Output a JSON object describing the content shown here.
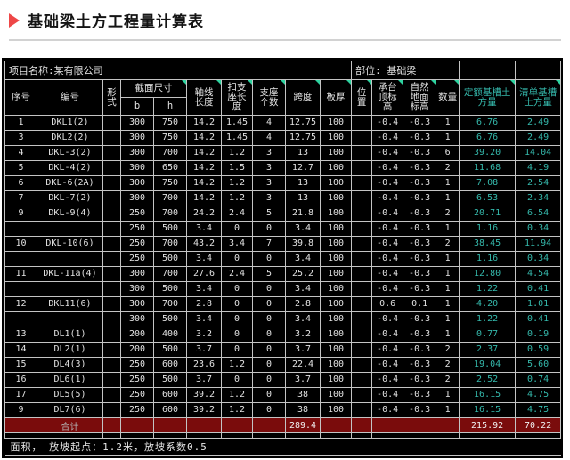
{
  "page": {
    "title": "基础梁土方工程量计算表"
  },
  "colors": {
    "accent_red": "#ee4747",
    "table_bg": "#000000",
    "grid_line": "#c4c4c4",
    "value_cyan": "#35b9ac",
    "total_row_bg": "#7a0c0c",
    "comment_marker_teal": "#2fd3a0"
  },
  "table": {
    "project_label": "项目名称:某有限公司",
    "location_label": "部位: 基础梁",
    "headers": {
      "seq": "序号",
      "code": "编号",
      "form": "形\n式",
      "section": "截面尺寸",
      "b": "b",
      "h": "h",
      "axis": "轴线\n长度",
      "deduct": "扣支\n座长\n度",
      "supports": "支座\n个数",
      "span": "跨度",
      "slab": "板厚",
      "position": "位置",
      "cap": "承台\n顶标\n高",
      "ground": "自然\n地面\n标高",
      "qty": "数量",
      "quota": "定额基槽土\n方量",
      "list": "清单基槽\n土方量"
    },
    "rows": [
      [
        "1",
        "DKL1(2)",
        "",
        "300",
        "750",
        "14.2",
        "1.45",
        "4",
        "12.75",
        "100",
        "",
        "-0.4",
        "-0.3",
        "1",
        "6.76",
        "2.49"
      ],
      [
        "3",
        "DKL2(2)",
        "",
        "300",
        "750",
        "14.2",
        "1.45",
        "4",
        "12.75",
        "100",
        "",
        "-0.4",
        "-0.3",
        "1",
        "6.76",
        "2.49"
      ],
      [
        "4",
        "DKL-3(2)",
        "",
        "300",
        "700",
        "14.2",
        "1.2",
        "3",
        "13",
        "100",
        "",
        "-0.4",
        "-0.3",
        "6",
        "39.20",
        "14.04"
      ],
      [
        "5",
        "DKL-4(2)",
        "",
        "300",
        "650",
        "14.2",
        "1.5",
        "3",
        "12.7",
        "100",
        "",
        "-0.4",
        "-0.3",
        "2",
        "11.68",
        "4.19"
      ],
      [
        "6",
        "DKL-6(2A)",
        "",
        "300",
        "750",
        "14.2",
        "1.2",
        "3",
        "13",
        "100",
        "",
        "-0.4",
        "-0.3",
        "1",
        "7.08",
        "2.54"
      ],
      [
        "7",
        "DKL-7(2)",
        "",
        "300",
        "700",
        "14.2",
        "1.2",
        "3",
        "13",
        "100",
        "",
        "-0.4",
        "-0.3",
        "1",
        "6.53",
        "2.34"
      ],
      [
        "9",
        "DKL-9(4)",
        "",
        "250",
        "700",
        "24.2",
        "2.4",
        "5",
        "21.8",
        "100",
        "",
        "-0.4",
        "-0.3",
        "2",
        "20.71",
        "6.54"
      ],
      [
        "",
        "",
        "",
        "250",
        "500",
        "3.4",
        "0",
        "0",
        "3.4",
        "100",
        "",
        "-0.4",
        "-0.3",
        "1",
        "1.16",
        "0.34"
      ],
      [
        "10",
        "DKL-10(6)",
        "",
        "250",
        "700",
        "43.2",
        "3.4",
        "7",
        "39.8",
        "100",
        "",
        "-0.4",
        "-0.3",
        "2",
        "38.45",
        "11.94"
      ],
      [
        "",
        "",
        "",
        "250",
        "500",
        "3.4",
        "0",
        "0",
        "3.4",
        "100",
        "",
        "-0.4",
        "-0.3",
        "1",
        "1.16",
        "0.34"
      ],
      [
        "11",
        "DKL-11a(4)",
        "",
        "300",
        "700",
        "27.6",
        "2.4",
        "5",
        "25.2",
        "100",
        "",
        "-0.4",
        "-0.3",
        "1",
        "12.80",
        "4.54"
      ],
      [
        "",
        "",
        "",
        "300",
        "500",
        "3.4",
        "0",
        "0",
        "3.4",
        "100",
        "",
        "-0.4",
        "-0.3",
        "1",
        "1.22",
        "0.41"
      ],
      [
        "12",
        "DKL11(6)",
        "",
        "300",
        "700",
        "2.8",
        "0",
        "0",
        "2.8",
        "100",
        "",
        "0.6",
        "0.1",
        "1",
        "4.20",
        "1.01"
      ],
      [
        "",
        "",
        "",
        "300",
        "500",
        "3.4",
        "0",
        "0",
        "3.4",
        "100",
        "",
        "-0.4",
        "-0.3",
        "1",
        "1.22",
        "0.41"
      ],
      [
        "13",
        "DL1(1)",
        "",
        "200",
        "400",
        "3.2",
        "0",
        "0",
        "3.2",
        "100",
        "",
        "-0.4",
        "-0.3",
        "1",
        "0.77",
        "0.19"
      ],
      [
        "14",
        "DL2(1)",
        "",
        "200",
        "500",
        "3.7",
        "0",
        "0",
        "3.7",
        "100",
        "",
        "-0.4",
        "-0.3",
        "2",
        "2.37",
        "0.59"
      ],
      [
        "15",
        "DL4(3)",
        "",
        "250",
        "600",
        "23.6",
        "1.2",
        "0",
        "22.4",
        "100",
        "",
        "-0.4",
        "-0.3",
        "2",
        "19.04",
        "5.60"
      ],
      [
        "16",
        "DL6(1)",
        "",
        "250",
        "500",
        "3.7",
        "0",
        "0",
        "3.7",
        "100",
        "",
        "-0.4",
        "-0.3",
        "2",
        "2.52",
        "0.74"
      ],
      [
        "17",
        "DL5(5)",
        "",
        "250",
        "600",
        "39.2",
        "1.2",
        "0",
        "38",
        "100",
        "",
        "-0.4",
        "-0.3",
        "1",
        "16.15",
        "4.75"
      ],
      [
        "9",
        "DL7(6)",
        "",
        "250",
        "600",
        "39.2",
        "1.2",
        "0",
        "38",
        "100",
        "",
        "-0.4",
        "-0.3",
        "1",
        "16.15",
        "4.75"
      ]
    ],
    "total": {
      "label": "合计",
      "span_total": "289.4",
      "quota_total": "215.92",
      "list_total": "70.22"
    },
    "footer_note": "面积，  放坡起点：1.2米，放坡系数0.5"
  }
}
